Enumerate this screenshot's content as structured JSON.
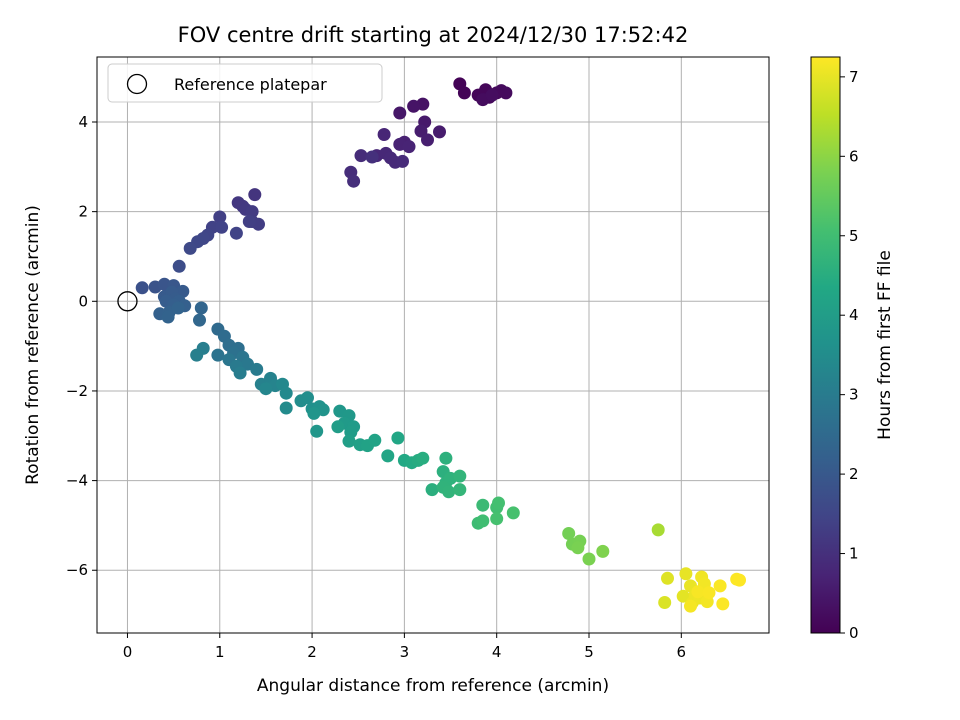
{
  "chart_data": {
    "type": "scatter",
    "title": "FOV centre drift starting at 2024/12/30 17:52:42",
    "xlabel": "Angular distance from reference (arcmin)",
    "ylabel": "Rotation from reference (arcmin)",
    "xlim": [
      -0.33,
      6.95
    ],
    "ylim": [
      -7.4,
      5.45
    ],
    "xticks": [
      0,
      1,
      2,
      3,
      4,
      5,
      6
    ],
    "yticks": [
      -6,
      -4,
      -2,
      0,
      2,
      4
    ],
    "grid": true,
    "legend": {
      "position": "top-left",
      "entries": [
        "Reference platepar"
      ]
    },
    "reference_point": {
      "x": 0,
      "y": 0
    },
    "colorbar": {
      "label": "Hours from first FF file",
      "range": [
        0,
        7.25
      ],
      "ticks": [
        0,
        1,
        2,
        3,
        4,
        5,
        6,
        7
      ],
      "colormap": "viridis"
    },
    "points": [
      [
        3.6,
        4.85,
        0.05
      ],
      [
        3.65,
        4.65,
        0.07
      ],
      [
        3.8,
        4.6,
        0.1
      ],
      [
        3.88,
        4.72,
        0.12
      ],
      [
        3.92,
        4.55,
        0.14
      ],
      [
        4.0,
        4.65,
        0.16
      ],
      [
        4.05,
        4.7,
        0.18
      ],
      [
        4.1,
        4.65,
        0.2
      ],
      [
        3.85,
        4.5,
        0.22
      ],
      [
        3.95,
        4.6,
        0.24
      ],
      [
        3.2,
        4.4,
        0.35
      ],
      [
        3.1,
        4.35,
        0.4
      ],
      [
        2.95,
        4.2,
        0.45
      ],
      [
        3.22,
        4.0,
        0.5
      ],
      [
        3.38,
        3.78,
        0.55
      ],
      [
        3.18,
        3.8,
        0.58
      ],
      [
        3.25,
        3.6,
        0.62
      ],
      [
        3.0,
        3.55,
        0.66
      ],
      [
        2.95,
        3.5,
        0.7
      ],
      [
        3.05,
        3.45,
        0.73
      ],
      [
        2.78,
        3.72,
        0.76
      ],
      [
        2.7,
        3.25,
        0.8
      ],
      [
        2.8,
        3.3,
        0.82
      ],
      [
        2.85,
        3.2,
        0.84
      ],
      [
        2.9,
        3.1,
        0.86
      ],
      [
        2.98,
        3.12,
        0.88
      ],
      [
        2.53,
        3.25,
        0.9
      ],
      [
        2.42,
        2.88,
        0.94
      ],
      [
        2.45,
        2.68,
        0.97
      ],
      [
        2.65,
        3.22,
        0.99
      ],
      [
        1.38,
        2.38,
        1.1
      ],
      [
        1.2,
        2.2,
        1.15
      ],
      [
        1.25,
        2.12,
        1.18
      ],
      [
        1.28,
        2.05,
        1.21
      ],
      [
        1.35,
        2.0,
        1.24
      ],
      [
        1.35,
        1.78,
        1.27
      ],
      [
        1.42,
        1.72,
        1.3
      ],
      [
        1.32,
        1.78,
        1.33
      ],
      [
        1.0,
        1.88,
        1.36
      ],
      [
        0.92,
        1.65,
        1.4
      ],
      [
        1.02,
        1.65,
        1.43
      ],
      [
        1.18,
        1.52,
        1.46
      ],
      [
        0.87,
        1.48,
        1.49
      ],
      [
        0.82,
        1.4,
        1.52
      ],
      [
        0.76,
        1.33,
        1.55
      ],
      [
        0.68,
        1.18,
        1.6
      ],
      [
        0.56,
        0.78,
        1.7
      ],
      [
        0.16,
        0.3,
        1.8
      ],
      [
        0.3,
        0.32,
        1.85
      ],
      [
        0.4,
        0.38,
        1.9
      ],
      [
        0.5,
        0.35,
        1.95
      ],
      [
        0.58,
        0.2,
        2.0
      ],
      [
        0.6,
        0.22,
        2.03
      ],
      [
        0.4,
        0.1,
        2.05
      ],
      [
        0.48,
        0.2,
        2.08
      ],
      [
        0.52,
        0.05,
        2.1
      ],
      [
        0.42,
        0.0,
        2.12
      ],
      [
        0.56,
        0.0,
        2.15
      ],
      [
        0.5,
        -0.08,
        2.18
      ],
      [
        0.62,
        -0.1,
        2.2
      ],
      [
        0.35,
        -0.28,
        2.22
      ],
      [
        0.45,
        -0.25,
        2.25
      ],
      [
        0.55,
        -0.15,
        2.28
      ],
      [
        0.44,
        -0.35,
        2.3
      ],
      [
        0.8,
        -0.15,
        2.35
      ],
      [
        0.78,
        -0.42,
        2.4
      ],
      [
        0.98,
        -0.62,
        2.5
      ],
      [
        1.05,
        -0.78,
        2.55
      ],
      [
        1.1,
        -0.98,
        2.6
      ],
      [
        1.2,
        -1.05,
        2.65
      ],
      [
        1.15,
        -1.15,
        2.7
      ],
      [
        0.98,
        -1.2,
        2.75
      ],
      [
        1.25,
        -1.25,
        2.8
      ],
      [
        1.1,
        -1.3,
        2.85
      ],
      [
        1.3,
        -1.4,
        2.9
      ],
      [
        1.18,
        -1.45,
        2.95
      ],
      [
        1.4,
        -1.52,
        3.0
      ],
      [
        1.22,
        -1.6,
        3.05
      ],
      [
        0.82,
        -1.05,
        3.08
      ],
      [
        0.75,
        -1.2,
        3.1
      ],
      [
        1.45,
        -1.85,
        3.15
      ],
      [
        1.55,
        -1.72,
        3.2
      ],
      [
        1.6,
        -1.88,
        3.25
      ],
      [
        1.5,
        -1.95,
        3.3
      ],
      [
        1.68,
        -1.85,
        3.35
      ],
      [
        1.72,
        -2.05,
        3.4
      ],
      [
        1.72,
        -2.38,
        3.45
      ],
      [
        1.88,
        -2.22,
        3.5
      ],
      [
        1.95,
        -2.15,
        3.55
      ],
      [
        2.0,
        -2.4,
        3.6
      ],
      [
        2.08,
        -2.35,
        3.65
      ],
      [
        2.12,
        -2.42,
        3.7
      ],
      [
        2.02,
        -2.5,
        3.75
      ],
      [
        2.05,
        -2.9,
        3.78
      ],
      [
        2.3,
        -2.45,
        3.82
      ],
      [
        2.4,
        -2.55,
        3.86
      ],
      [
        2.35,
        -2.72,
        3.9
      ],
      [
        2.45,
        -2.8,
        3.94
      ],
      [
        2.42,
        -2.92,
        3.98
      ],
      [
        2.28,
        -2.8,
        4.0
      ],
      [
        2.4,
        -3.12,
        4.05
      ],
      [
        2.52,
        -3.2,
        4.1
      ],
      [
        2.6,
        -3.22,
        4.15
      ],
      [
        2.68,
        -3.1,
        4.2
      ],
      [
        2.82,
        -3.45,
        4.25
      ],
      [
        2.93,
        -3.05,
        4.3
      ],
      [
        3.0,
        -3.55,
        4.35
      ],
      [
        3.08,
        -3.6,
        4.4
      ],
      [
        3.15,
        -3.55,
        4.45
      ],
      [
        3.2,
        -3.5,
        4.5
      ],
      [
        3.3,
        -4.2,
        4.55
      ],
      [
        3.42,
        -3.8,
        4.58
      ],
      [
        3.45,
        -3.5,
        4.6
      ],
      [
        3.45,
        -4.05,
        4.62
      ],
      [
        3.5,
        -3.95,
        4.65
      ],
      [
        3.42,
        -4.15,
        4.68
      ],
      [
        3.48,
        -4.25,
        4.7
      ],
      [
        3.6,
        -3.9,
        4.72
      ],
      [
        3.6,
        -4.2,
        4.75
      ],
      [
        3.85,
        -4.55,
        4.9
      ],
      [
        3.8,
        -4.95,
        4.95
      ],
      [
        3.85,
        -4.9,
        5.0
      ],
      [
        4.0,
        -4.6,
        5.05
      ],
      [
        4.02,
        -4.5,
        5.08
      ],
      [
        4.0,
        -4.85,
        5.1
      ],
      [
        4.18,
        -4.72,
        5.12
      ],
      [
        4.78,
        -5.18,
        5.7
      ],
      [
        4.82,
        -5.42,
        5.72
      ],
      [
        4.9,
        -5.35,
        5.75
      ],
      [
        4.88,
        -5.5,
        5.78
      ],
      [
        5.0,
        -5.75,
        5.8
      ],
      [
        5.15,
        -5.58,
        5.85
      ],
      [
        5.75,
        -5.1,
        6.3
      ],
      [
        5.82,
        -6.72,
        6.85
      ],
      [
        5.85,
        -6.18,
        6.9
      ],
      [
        6.02,
        -6.58,
        6.95
      ],
      [
        6.05,
        -6.08,
        7.0
      ],
      [
        6.1,
        -6.35,
        7.02
      ],
      [
        6.12,
        -6.72,
        7.04
      ],
      [
        6.15,
        -6.55,
        7.06
      ],
      [
        6.2,
        -6.62,
        7.08
      ],
      [
        6.22,
        -6.15,
        7.1
      ],
      [
        6.25,
        -6.3,
        7.12
      ],
      [
        6.28,
        -6.7,
        7.14
      ],
      [
        6.1,
        -6.8,
        7.16
      ],
      [
        6.18,
        -6.48,
        7.18
      ],
      [
        6.3,
        -6.5,
        7.2
      ],
      [
        6.42,
        -6.35,
        7.22
      ],
      [
        6.45,
        -6.75,
        7.23
      ],
      [
        6.6,
        -6.2,
        7.24
      ],
      [
        6.63,
        -6.22,
        7.25
      ]
    ]
  }
}
